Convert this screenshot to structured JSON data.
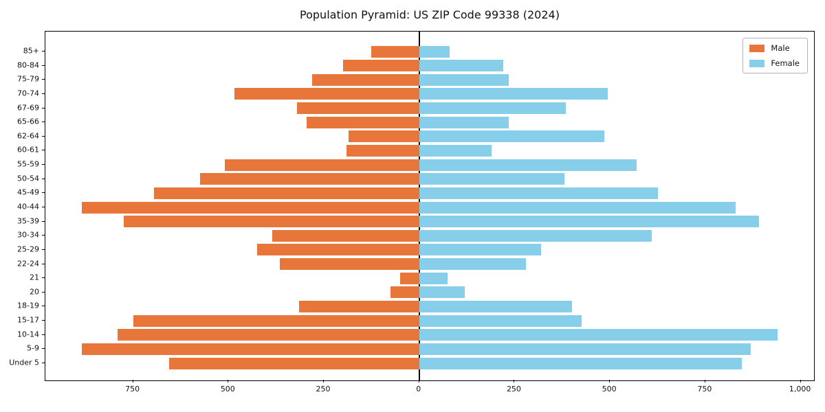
{
  "chart_data": {
    "type": "bar",
    "variant": "population-pyramid",
    "orientation": "horizontal",
    "title": "Population Pyramid: US ZIP Code 99338 (2024)",
    "categories_top_to_bottom": [
      "85+",
      "80-84",
      "75-79",
      "70-74",
      "67-69",
      "65-66",
      "62-64",
      "60-61",
      "55-59",
      "50-54",
      "45-49",
      "40-44",
      "35-39",
      "30-34",
      "25-29",
      "22-24",
      "21",
      "20",
      "18-19",
      "15-17",
      "10-14",
      "5-9",
      "Under 5"
    ],
    "series": [
      {
        "name": "Male",
        "side": "left",
        "color": "#e8763b",
        "values": [
          125,
          200,
          280,
          485,
          320,
          295,
          185,
          190,
          510,
          575,
          695,
          885,
          775,
          385,
          425,
          365,
          50,
          75,
          315,
          750,
          790,
          885,
          655
        ]
      },
      {
        "name": "Female",
        "side": "right",
        "color": "#87ceeb",
        "values": [
          80,
          220,
          235,
          495,
          385,
          235,
          485,
          190,
          570,
          380,
          625,
          830,
          890,
          610,
          320,
          280,
          75,
          120,
          400,
          425,
          940,
          870,
          845
        ]
      }
    ],
    "x_axis": {
      "xlim": [
        -980,
        1035
      ],
      "tick_values": [
        -750,
        -500,
        -250,
        0,
        250,
        500,
        750,
        1000
      ],
      "tick_labels": [
        "750",
        "500",
        "250",
        "0",
        "250",
        "500",
        "750",
        "1,000"
      ]
    },
    "legend": {
      "position": "top-right",
      "entries": [
        "Male",
        "Female"
      ]
    },
    "grid": false,
    "background": "#ffffff"
  }
}
